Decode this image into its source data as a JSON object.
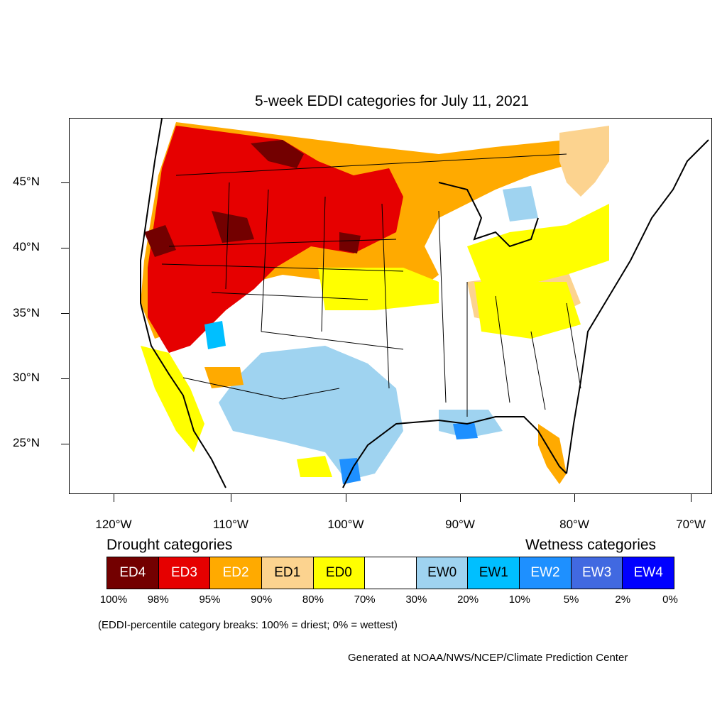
{
  "map": {
    "title": "5-week EDDI categories for July 11, 2021",
    "latitude_labels": [
      "45°N",
      "40°N",
      "35°N",
      "30°N",
      "25°N"
    ],
    "longitude_labels": [
      "120°W",
      "110°W",
      "100°W",
      "90°W",
      "80°W",
      "70°W"
    ]
  },
  "legend": {
    "drought_heading": "Drought categories",
    "wetness_heading": "Wetness categories",
    "categories": [
      {
        "label": "ED4",
        "color": "#730000",
        "text_color": "#ffffff"
      },
      {
        "label": "ED3",
        "color": "#e60000",
        "text_color": "#ffffff"
      },
      {
        "label": "ED2",
        "color": "#ffaa00",
        "text_color": "#ffffff"
      },
      {
        "label": "ED1",
        "color": "#fcd38f",
        "text_color": "#000000"
      },
      {
        "label": "ED0",
        "color": "#ffff00",
        "text_color": "#000000"
      },
      {
        "label": "",
        "color": "#ffffff",
        "text_color": "#000000"
      },
      {
        "label": "EW0",
        "color": "#9fd3f0",
        "text_color": "#000000"
      },
      {
        "label": "EW1",
        "color": "#00bfff",
        "text_color": "#000000"
      },
      {
        "label": "EW2",
        "color": "#1e90ff",
        "text_color": "#ffffff"
      },
      {
        "label": "EW3",
        "color": "#4169e1",
        "text_color": "#ffffff"
      },
      {
        "label": "EW4",
        "color": "#0000ff",
        "text_color": "#ffffff"
      }
    ],
    "breaks": [
      "100%",
      "98%",
      "95%",
      "90%",
      "80%",
      "70%",
      "30%",
      "20%",
      "10%",
      "5%",
      "2%",
      "0%"
    ]
  },
  "note": "(EDDI-percentile category breaks: 100% = driest; 0% = wettest)",
  "credit": "Generated at NOAA/NWS/NCEP/Climate Prediction Center"
}
